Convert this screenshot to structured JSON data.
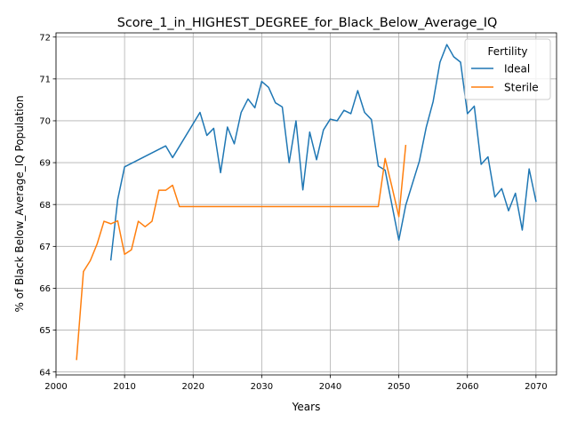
{
  "chart_data": {
    "type": "line",
    "title": "Score_1_in_HIGHEST_DEGREE_for_Black_Below_Average_IQ",
    "xlabel": "Years",
    "ylabel": "% of Black Below_Average_IQ Population",
    "xlim": [
      2000,
      2073
    ],
    "ylim": [
      63.93,
      72.1
    ],
    "xticks": [
      2000,
      2010,
      2020,
      2030,
      2040,
      2050,
      2060,
      2070
    ],
    "yticks": [
      64,
      65,
      66,
      67,
      68,
      69,
      70,
      71,
      72
    ],
    "grid": true,
    "legend": {
      "title": "Fertility",
      "placement": "top-right"
    },
    "series": [
      {
        "name": "Ideal",
        "color": "#1f77b4",
        "x": [
          2008,
          2009,
          2010,
          2016,
          2017,
          2021,
          2022,
          2023,
          2024,
          2025,
          2026,
          2027,
          2028,
          2029,
          2030,
          2031,
          2032,
          2033,
          2034,
          2035,
          2036,
          2037,
          2038,
          2039,
          2040,
          2041,
          2042,
          2043,
          2044,
          2045,
          2046,
          2047,
          2048,
          2050,
          2051,
          2053,
          2054,
          2055,
          2056,
          2057,
          2058,
          2059,
          2060,
          2061,
          2062,
          2063,
          2064,
          2065,
          2066,
          2067,
          2068,
          2069,
          2070
        ],
        "y": [
          66.68,
          68.12,
          68.9,
          69.4,
          69.12,
          70.2,
          69.65,
          69.82,
          68.76,
          69.85,
          69.45,
          70.2,
          70.52,
          70.31,
          70.94,
          70.8,
          70.43,
          70.33,
          69.0,
          70.0,
          68.35,
          69.73,
          69.07,
          69.78,
          70.04,
          70.0,
          70.25,
          70.17,
          70.72,
          70.2,
          70.03,
          68.92,
          68.82,
          67.15,
          67.98,
          69.04,
          69.85,
          70.46,
          71.4,
          71.82,
          71.53,
          71.4,
          70.17,
          70.35,
          68.96,
          69.14,
          68.18,
          68.38,
          67.85,
          68.27,
          67.39,
          68.85,
          68.08
        ]
      },
      {
        "name": "Sterile",
        "color": "#ff7f0e",
        "x": [
          2003,
          2004,
          2005,
          2006,
          2007,
          2008,
          2009,
          2010,
          2011,
          2012,
          2013,
          2014,
          2015,
          2016,
          2017,
          2018,
          2047,
          2048,
          2049,
          2050,
          2051
        ],
        "y": [
          64.3,
          66.4,
          66.66,
          67.06,
          67.6,
          67.54,
          67.61,
          66.81,
          66.92,
          67.6,
          67.47,
          67.6,
          68.34,
          68.34,
          68.46,
          67.95,
          67.95,
          69.1,
          68.42,
          67.71,
          69.41
        ]
      }
    ]
  }
}
